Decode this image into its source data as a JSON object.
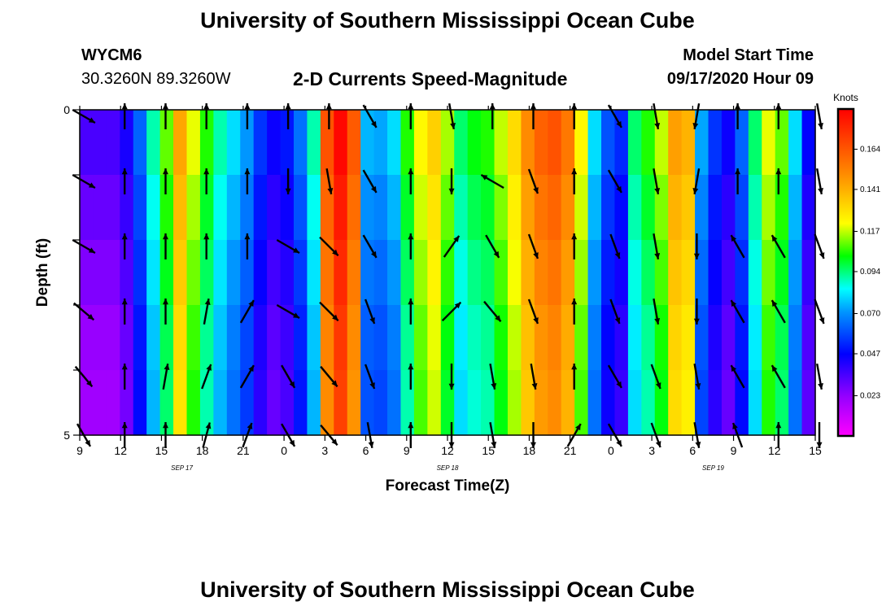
{
  "header": {
    "title": "University of Southern Mississippi Ocean Cube",
    "station_id": "WYCM6",
    "station_coords": "30.3260N 89.3260W",
    "plot_title": "2-D Currents Speed-Magnitude",
    "model_start_label": "Model Start Time",
    "model_start_value": "09/17/2020 Hour 09"
  },
  "footer": {
    "title": "University of Southern Mississippi Ocean Cube"
  },
  "chart_data": {
    "type": "heatmap",
    "title": "2-D Currents Speed-Magnitude",
    "xlabel": "Forecast Time(Z)",
    "ylabel": "Depth (ft)",
    "x_tick_labels": [
      "9",
      "12",
      "15",
      "18",
      "21",
      "0",
      "3",
      "6",
      "9",
      "12",
      "15",
      "18",
      "21",
      "0",
      "3",
      "6",
      "9",
      "12",
      "15"
    ],
    "date_labels": [
      {
        "label": "SEP 17",
        "tick_index": 2.5
      },
      {
        "label": "SEP 18",
        "tick_index": 9
      },
      {
        "label": "SEP 19",
        "tick_index": 15.5
      }
    ],
    "y_tick_labels": [
      "0",
      "5"
    ],
    "ylim": [
      0,
      5
    ],
    "y_inverted": true,
    "colorbar": {
      "title": "Knots",
      "tick_labels": [
        "0.164",
        "0.141",
        "0.117",
        "0.094",
        "0.070",
        "0.047",
        "0.023"
      ],
      "tick_values": [
        0.164,
        0.141,
        0.117,
        0.094,
        0.07,
        0.047,
        0.023
      ],
      "range": [
        0.0,
        0.187
      ]
    },
    "layers": 5,
    "hours": 55,
    "hour_speeds": [
      0.03,
      0.03,
      0.03,
      0.038,
      0.058,
      0.085,
      0.105,
      0.138,
      0.115,
      0.1,
      0.085,
      0.075,
      0.066,
      0.05,
      0.04,
      0.045,
      0.06,
      0.085,
      0.16,
      0.18,
      0.158,
      0.07,
      0.068,
      0.075,
      0.1,
      0.118,
      0.128,
      0.11,
      0.09,
      0.097,
      0.1,
      0.112,
      0.125,
      0.145,
      0.156,
      0.16,
      0.15,
      0.118,
      0.075,
      0.055,
      0.048,
      0.09,
      0.1,
      0.112,
      0.14,
      0.135,
      0.068,
      0.05,
      0.04,
      0.058,
      0.09,
      0.115,
      0.105,
      0.075,
      0.042
    ],
    "layer_offsets": [
      0.005,
      0.0,
      -0.004,
      -0.008,
      -0.01
    ],
    "vectors": {
      "columns_hour": [
        0.3,
        3.3,
        6.3,
        9.3,
        12.3,
        15.3,
        18.3,
        21.3,
        24.3,
        27.3,
        30.3,
        33.3,
        36.3,
        39.3,
        42.3,
        45.3,
        48.3,
        51.3,
        54.3
      ],
      "layer_depths": [
        0.1,
        1.1,
        2.1,
        3.1,
        4.1,
        5.0
      ],
      "directions_deg": [
        [
          120,
          0,
          0,
          0,
          0,
          0,
          0,
          150,
          0,
          170,
          0,
          0,
          0,
          150,
          170,
          190,
          0,
          0,
          170
        ],
        [
          120,
          0,
          0,
          0,
          0,
          180,
          170,
          150,
          0,
          180,
          300,
          160,
          0,
          150,
          170,
          190,
          0,
          0,
          170
        ],
        [
          120,
          0,
          0,
          0,
          0,
          120,
          135,
          150,
          0,
          35,
          150,
          160,
          0,
          160,
          170,
          180,
          330,
          330,
          160
        ],
        [
          130,
          0,
          0,
          10,
          30,
          120,
          135,
          160,
          0,
          45,
          140,
          160,
          0,
          160,
          170,
          180,
          330,
          330,
          160
        ],
        [
          140,
          0,
          10,
          20,
          30,
          150,
          140,
          160,
          0,
          180,
          170,
          170,
          0,
          150,
          160,
          170,
          330,
          330,
          170
        ],
        [
          150,
          0,
          0,
          15,
          20,
          150,
          140,
          170,
          0,
          180,
          170,
          180,
          30,
          150,
          160,
          170,
          340,
          0,
          180
        ]
      ]
    }
  }
}
